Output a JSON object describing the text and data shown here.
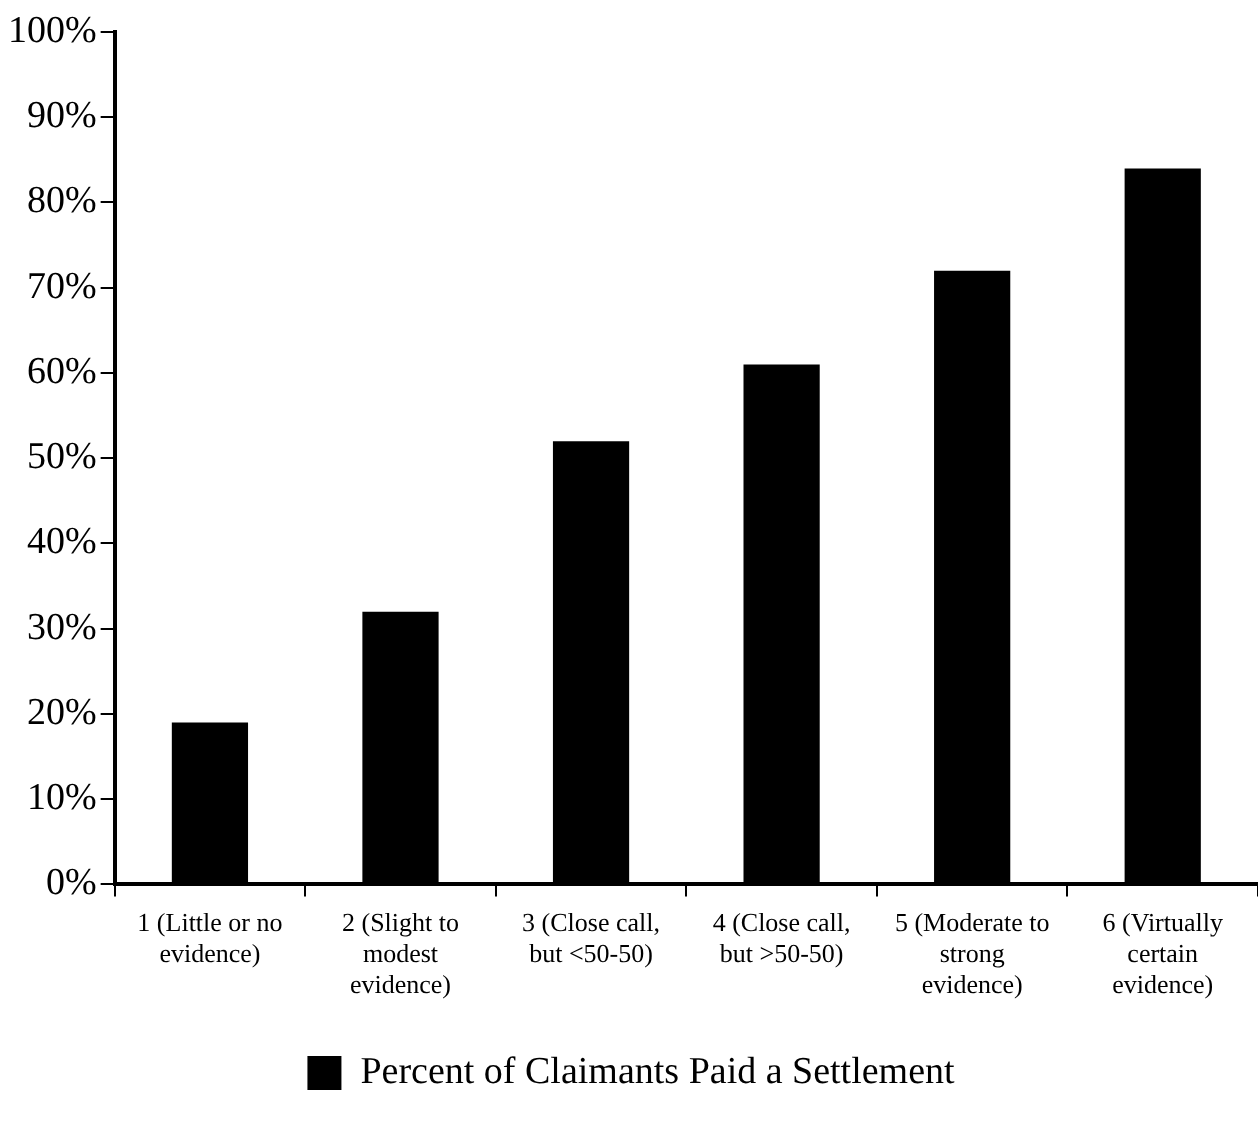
{
  "chart_data": {
    "type": "bar",
    "categories": [
      "1 (Little or no evidence)",
      "2 (Slight to modest evidence)",
      "3 (Close call, but <50-50)",
      "4 (Close call, but >50-50)",
      "5 (Moderate to strong evidence)",
      "6 (Virtually certain evidence)"
    ],
    "series": [
      {
        "name": "Percent of Claimants Paid a Settlement",
        "color": "#000000",
        "values": [
          19,
          32,
          52,
          61,
          72,
          84
        ]
      }
    ],
    "ylim": [
      0,
      100
    ],
    "yticks": [
      {
        "value": 0,
        "label": "0%"
      },
      {
        "value": 10,
        "label": "10%"
      },
      {
        "value": 20,
        "label": "20%"
      },
      {
        "value": 30,
        "label": "30%"
      },
      {
        "value": 40,
        "label": "40%"
      },
      {
        "value": 50,
        "label": "50%"
      },
      {
        "value": 60,
        "label": "60%"
      },
      {
        "value": 70,
        "label": "70%"
      },
      {
        "value": 80,
        "label": "80%"
      },
      {
        "value": 90,
        "label": "90%"
      },
      {
        "value": 100,
        "label": "100%"
      }
    ],
    "grid": false,
    "legend": "bottom"
  }
}
